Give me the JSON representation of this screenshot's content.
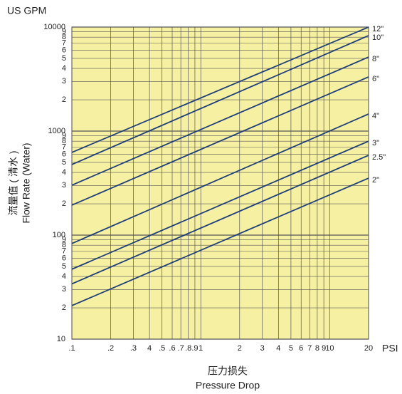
{
  "chart_data": {
    "type": "line",
    "title": "US GPM",
    "y_label_cn": "流量值 ( 清水 )",
    "y_label": "Flow Rate (Water)",
    "x_label_cn": "压力损失",
    "x_label": "Pressure Drop",
    "x_unit": "PSI",
    "x": [
      0.1,
      20
    ],
    "xlog": true,
    "ylog": true,
    "grid": true,
    "xlim": [
      0.1,
      20
    ],
    "ylim": [
      10,
      10000
    ],
    "xticks": [
      {
        "value": 0.1,
        "label": ".1"
      },
      {
        "value": 0.2,
        "label": ".2"
      },
      {
        "value": 0.3,
        "label": ".3"
      },
      {
        "value": 0.4,
        "label": "4"
      },
      {
        "value": 0.5,
        "label": ".5"
      },
      {
        "value": 0.6,
        "label": ".6"
      },
      {
        "value": 0.7,
        "label": ".7"
      },
      {
        "value": 0.8,
        "label": ".8"
      },
      {
        "value": 0.9,
        "label": ".9"
      },
      1,
      2,
      3,
      4,
      5,
      6,
      7,
      8,
      9,
      10,
      20
    ],
    "yticks": [
      10,
      {
        "value": 20,
        "label": "2"
      },
      {
        "value": 30,
        "label": "3"
      },
      {
        "value": 40,
        "label": "4"
      },
      {
        "value": 50,
        "label": "5"
      },
      {
        "value": 60,
        "label": "6"
      },
      {
        "value": 70,
        "label": "7"
      },
      {
        "value": 80,
        "label": "8"
      },
      {
        "value": 90,
        "label": "9"
      },
      100,
      {
        "value": 200,
        "label": "2"
      },
      {
        "value": 300,
        "label": "3"
      },
      {
        "value": 400,
        "label": "4"
      },
      {
        "value": 500,
        "label": "5"
      },
      {
        "value": 600,
        "label": "6"
      },
      {
        "value": 700,
        "label": "7"
      },
      {
        "value": 800,
        "label": "8"
      },
      {
        "value": 900,
        "label": "9"
      },
      1000,
      {
        "value": 2000,
        "label": "2"
      },
      {
        "value": 3000,
        "label": "3"
      },
      {
        "value": 4000,
        "label": "4"
      },
      {
        "value": 5000,
        "label": "5"
      },
      {
        "value": 6000,
        "label": "6"
      },
      {
        "value": 7000,
        "label": "7"
      },
      {
        "value": 8000,
        "label": "8"
      },
      {
        "value": 9000,
        "label": "9"
      },
      10000
    ],
    "series": [
      {
        "name": "12\"",
        "color": "#1f3f7a",
        "values": [
          624,
          10000
        ]
      },
      {
        "name": "10\"",
        "color": "#1f3f7a",
        "values": [
          477,
          8280
        ]
      },
      {
        "name": "8\"",
        "color": "#1f3f7a",
        "values": [
          302,
          5150
        ]
      },
      {
        "name": "6\"",
        "color": "#1f3f7a",
        "values": [
          194,
          3320
        ]
      },
      {
        "name": "4\"",
        "color": "#1f3f7a",
        "values": [
          83,
          1460
        ]
      },
      {
        "name": "3\"",
        "color": "#1f3f7a",
        "values": [
          47,
          800
        ]
      },
      {
        "name": "2.5\"",
        "color": "#1f3f7a",
        "values": [
          34,
          585
        ]
      },
      {
        "name": "2\"",
        "color": "#1f3f7a",
        "values": [
          21,
          353
        ]
      }
    ]
  }
}
